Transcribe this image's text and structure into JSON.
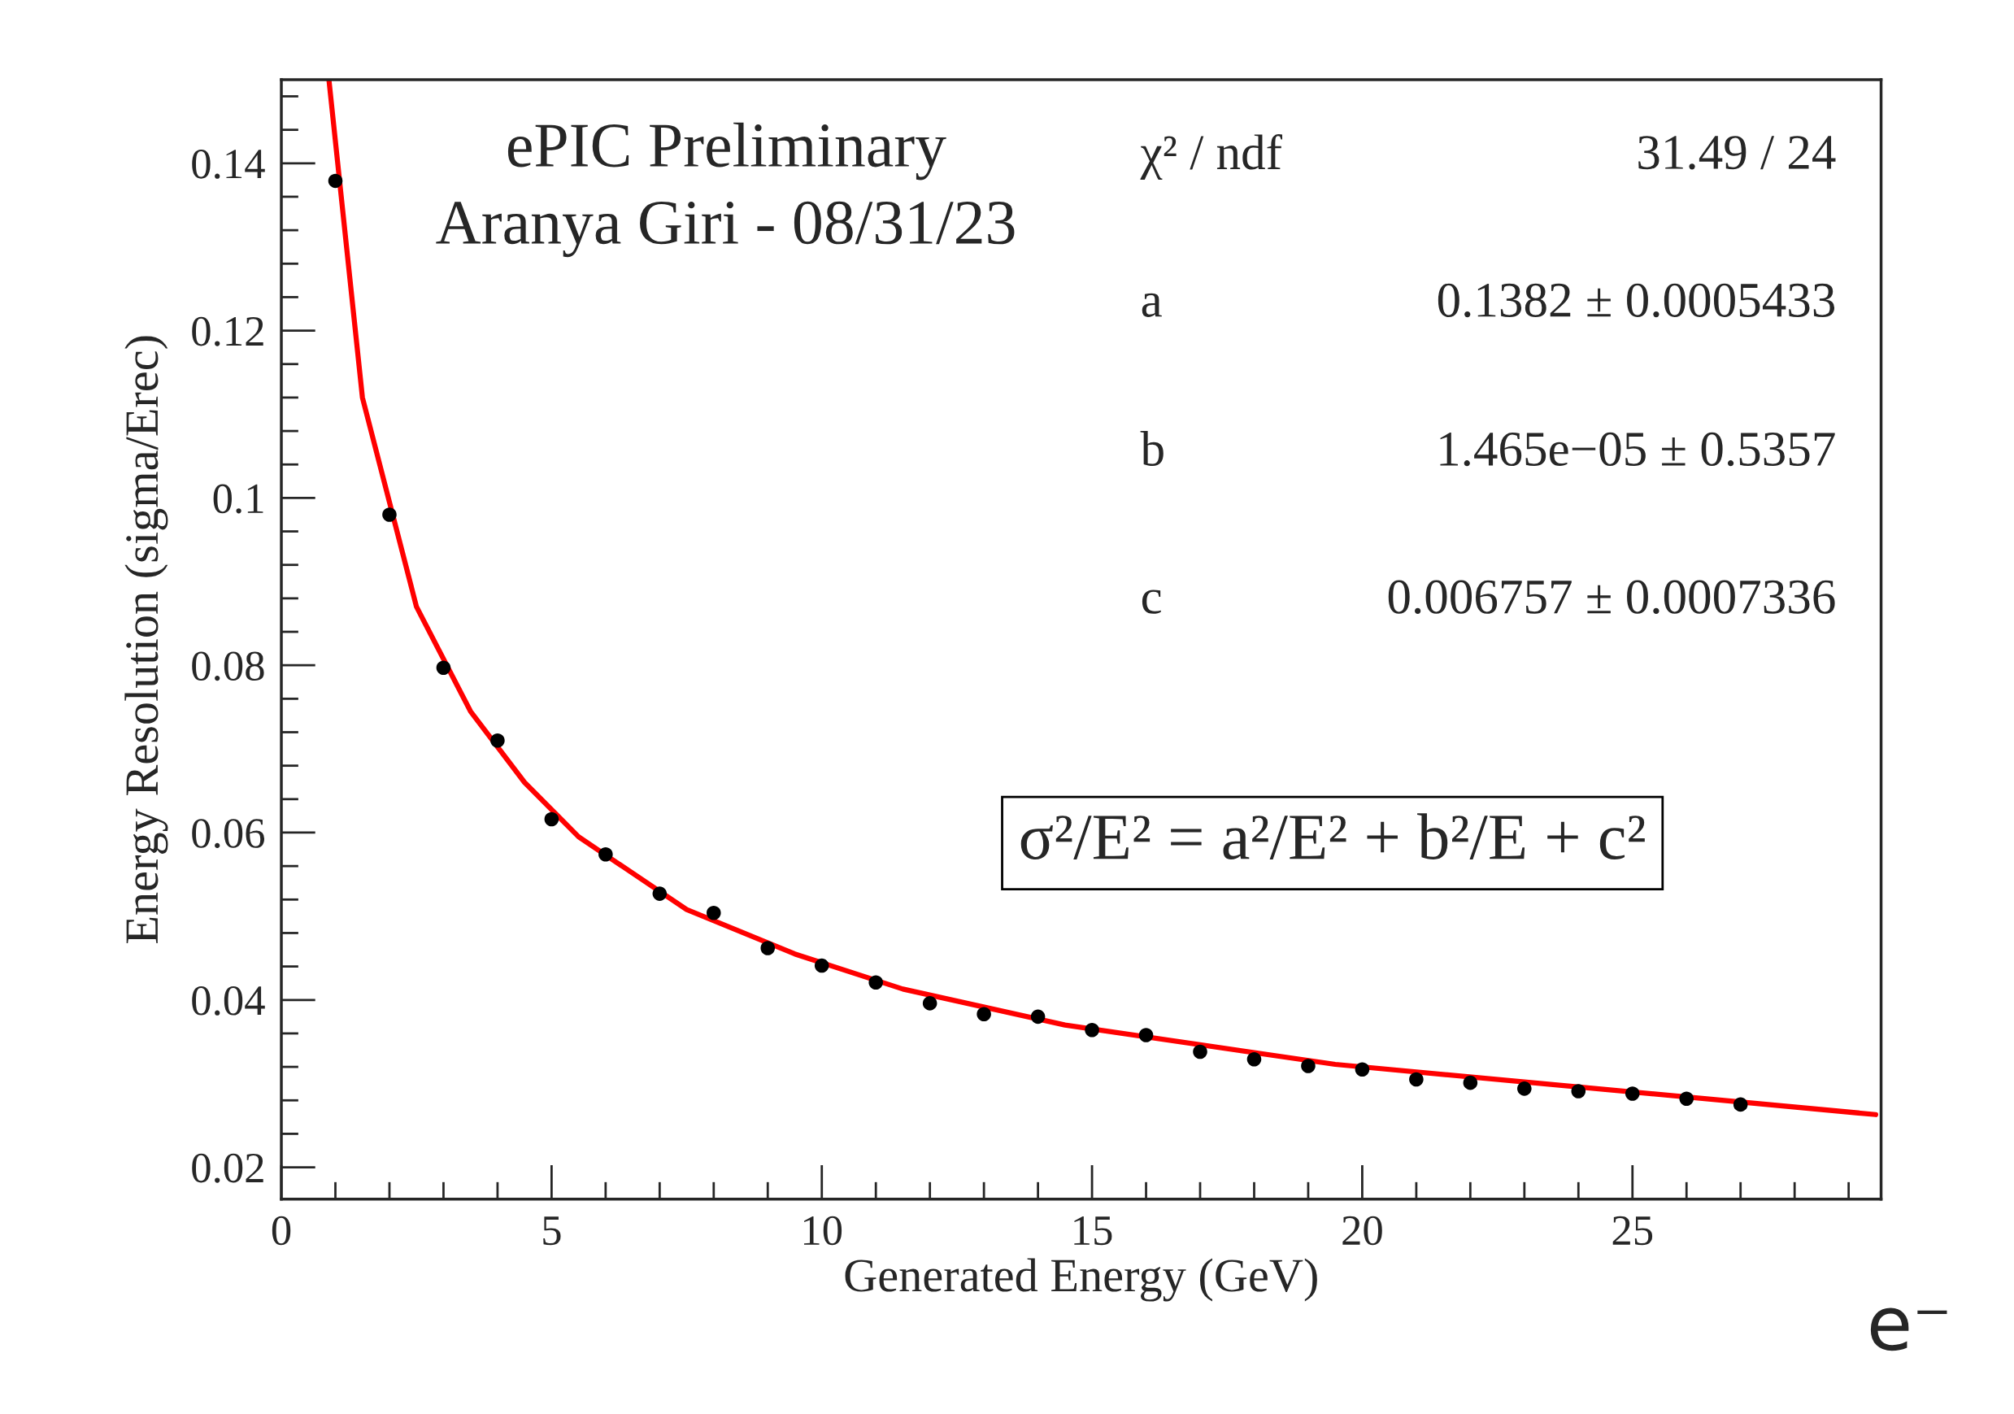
{
  "chart_data": {
    "type": "scatter",
    "xlabel": "Generated Energy (GeV)",
    "ylabel": "Energy Resolution (sigma/Erec)",
    "x": [
      1,
      2,
      3,
      4,
      5,
      6,
      7,
      8,
      9,
      10,
      11,
      12,
      13,
      14,
      15,
      16,
      17,
      18,
      19,
      20,
      21,
      22,
      23,
      24,
      25,
      26,
      27
    ],
    "series": [
      {
        "color": "#000000",
        "marker": "circle",
        "values": [
          0.1379,
          0.098,
          0.0797,
          0.071,
          0.0616,
          0.0574,
          0.0527,
          0.0504,
          0.0462,
          0.0441,
          0.0421,
          0.0396,
          0.0383,
          0.038,
          0.0364,
          0.0358,
          0.0338,
          0.0329,
          0.0321,
          0.0317,
          0.0305,
          0.0301,
          0.0294,
          0.0291,
          0.0288,
          0.0282,
          0.0275
        ]
      },
      {
        "type": "line",
        "color": "#ff0000",
        "line_style": "solid",
        "marker": "none",
        "x": [
          0.88,
          1.5,
          2.5,
          3.5,
          4.5,
          5.5,
          7.5,
          9.5,
          11.5,
          14.5,
          19.5,
          24.5,
          29.5
        ],
        "values": [
          0.15,
          0.112,
          0.087,
          0.0745,
          0.066,
          0.0595,
          0.0508,
          0.0455,
          0.0413,
          0.037,
          0.0323,
          0.0293,
          0.0263
        ]
      }
    ],
    "xlim": [
      0,
      29.6
    ],
    "ylim": [
      0.0162,
      0.15
    ],
    "xticks": [
      0,
      5,
      10,
      15,
      20,
      25
    ],
    "yticks": [
      0.02,
      0.04,
      0.06,
      0.08,
      0.1,
      0.12,
      0.14
    ],
    "grid": false,
    "legend": false,
    "annotations": [
      "ePIC Preliminary",
      "Aranya Giri - 08/31/23",
      "χ² / ndf",
      "31.49 / 24",
      "a",
      "0.1382 ± 0.0005433",
      "b",
      "1.465e−05 ± 0.5357",
      "c",
      "0.006757 ± 0.0007336",
      "σ²/E² = a²/E² + b²/E + c²",
      "e⁻"
    ]
  }
}
